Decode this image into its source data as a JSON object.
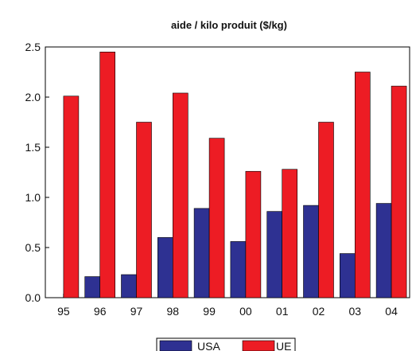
{
  "chart_data": {
    "type": "bar",
    "title": "aide / kilo produit ($/kg)",
    "xlabel": "",
    "ylabel": "",
    "categories": [
      "95",
      "96",
      "97",
      "98",
      "99",
      "00",
      "01",
      "02",
      "03",
      "04"
    ],
    "series": [
      {
        "name": "USA",
        "color": "#2e3192",
        "values": [
          0.0,
          0.21,
          0.23,
          0.6,
          0.89,
          0.56,
          0.86,
          0.92,
          0.44,
          0.94
        ]
      },
      {
        "name": "UE",
        "color": "#ed1c24",
        "values": [
          2.01,
          2.45,
          1.75,
          2.04,
          1.59,
          1.26,
          1.28,
          1.75,
          2.25,
          2.11
        ]
      }
    ],
    "ylim": [
      0,
      2.5
    ],
    "yticks": [
      "0.0",
      "0.5",
      "1.0",
      "1.5",
      "2.0",
      "2.5"
    ],
    "grid": false,
    "legend_position": "bottom"
  }
}
